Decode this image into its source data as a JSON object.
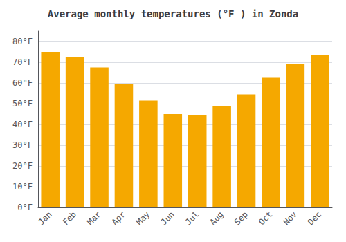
{
  "chart_data": {
    "type": "bar",
    "title": "Average monthly temperatures (°F ) in Zonda",
    "categories": [
      "Jan",
      "Feb",
      "Mar",
      "Apr",
      "May",
      "Jun",
      "Jul",
      "Aug",
      "Sep",
      "Oct",
      "Nov",
      "Dec"
    ],
    "values": [
      75,
      72.5,
      67.5,
      59.5,
      51.5,
      45,
      44.5,
      49,
      54.5,
      62.5,
      69,
      73.5
    ],
    "color": "#F5A800",
    "ylim": [
      0,
      85
    ],
    "yticks": [
      {
        "value": 0,
        "label": "0°F"
      },
      {
        "value": 10,
        "label": "10°F"
      },
      {
        "value": 20,
        "label": "20°F"
      },
      {
        "value": 30,
        "label": "30°F"
      },
      {
        "value": 40,
        "label": "40°F"
      },
      {
        "value": 50,
        "label": "50°F"
      },
      {
        "value": 60,
        "label": "60°F"
      },
      {
        "value": 70,
        "label": "70°F"
      },
      {
        "value": 80,
        "label": "80°F"
      }
    ],
    "grid": true
  }
}
